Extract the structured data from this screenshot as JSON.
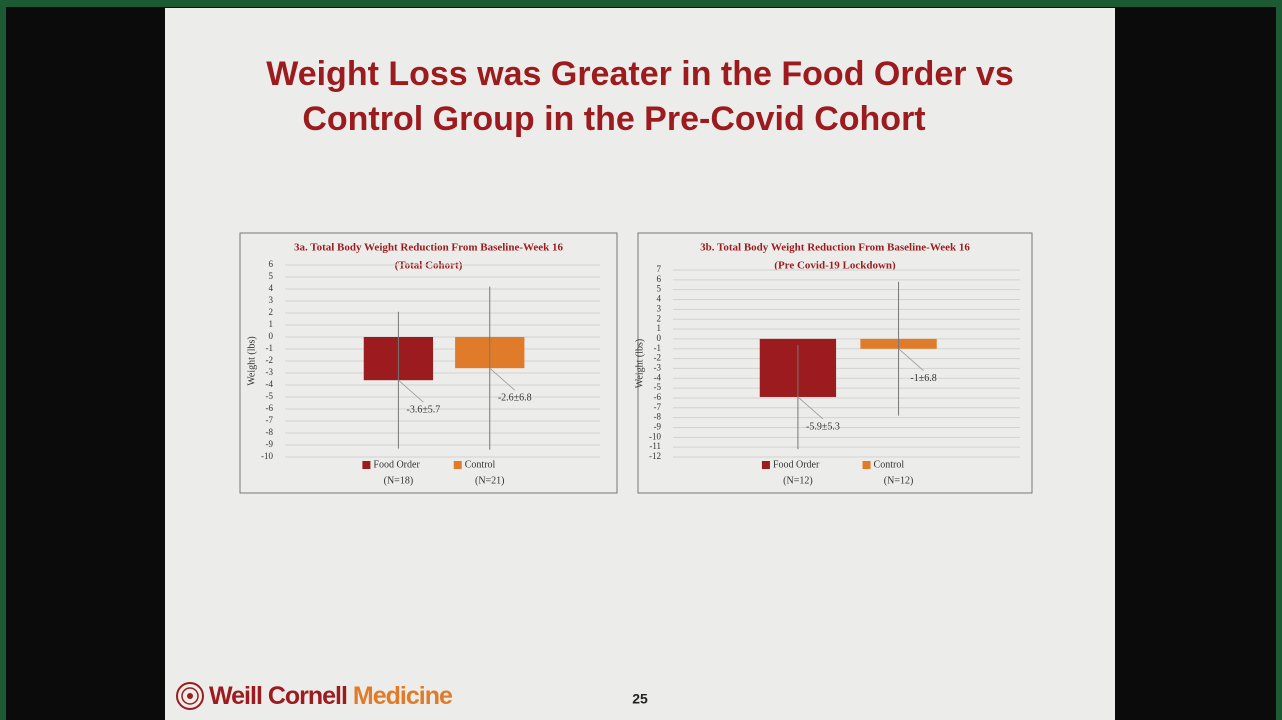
{
  "title": [
    "Weight Loss was Greater in the Food Order vs",
    "Control Group in the Pre-Covid Cohort"
  ],
  "logo": {
    "primary": "Weill Cornell",
    "secondary": "Medicine"
  },
  "page_number": "25",
  "chart_data": [
    {
      "type": "bar",
      "title": "3a. Total Body Weight Reduction From Baseline-Week 16",
      "subtitle": "(Total Cohort)",
      "y_label": "Weight (lbs)",
      "ylim": [
        -10,
        6
      ],
      "yticks": [
        6,
        5,
        4,
        3,
        2,
        1,
        0,
        -1,
        -2,
        -3,
        -4,
        -5,
        -6,
        -7,
        -8,
        -9,
        -10
      ],
      "grid": true,
      "series": [
        {
          "name": "Food Order",
          "n_label": "(N=18)",
          "color": "#9b1b1e",
          "values": [
            -3.6
          ],
          "errors": [
            5.7
          ],
          "value_labels": [
            "-3.6±5.7"
          ]
        },
        {
          "name": "Control",
          "n_label": "(N=21)",
          "color": "#e07b2a",
          "values": [
            -2.6
          ],
          "errors": [
            6.8
          ],
          "value_labels": [
            "-2.6±6.8"
          ]
        }
      ]
    },
    {
      "type": "bar",
      "title": "3b. Total Body Weight Reduction From Baseline-Week 16",
      "subtitle": "(Pre Covid-19 Lockdown)",
      "y_label": "Weight (lbs)",
      "ylim": [
        -12,
        7
      ],
      "yticks": [
        7,
        6,
        5,
        4,
        3,
        2,
        1,
        0,
        -1,
        -2,
        -3,
        -4,
        -5,
        -6,
        -7,
        -8,
        -9,
        -10,
        -11,
        -12
      ],
      "grid": true,
      "series": [
        {
          "name": "Food Order",
          "n_label": "(N=12)",
          "color": "#9b1b1e",
          "values": [
            -5.9
          ],
          "errors": [
            5.3
          ],
          "value_labels": [
            "-5.9±5.3"
          ]
        },
        {
          "name": "Control",
          "n_label": "(N=12)",
          "color": "#e07b2a",
          "values": [
            -1
          ],
          "errors": [
            6.8
          ],
          "value_labels": [
            "-1±6.8"
          ]
        }
      ]
    }
  ]
}
